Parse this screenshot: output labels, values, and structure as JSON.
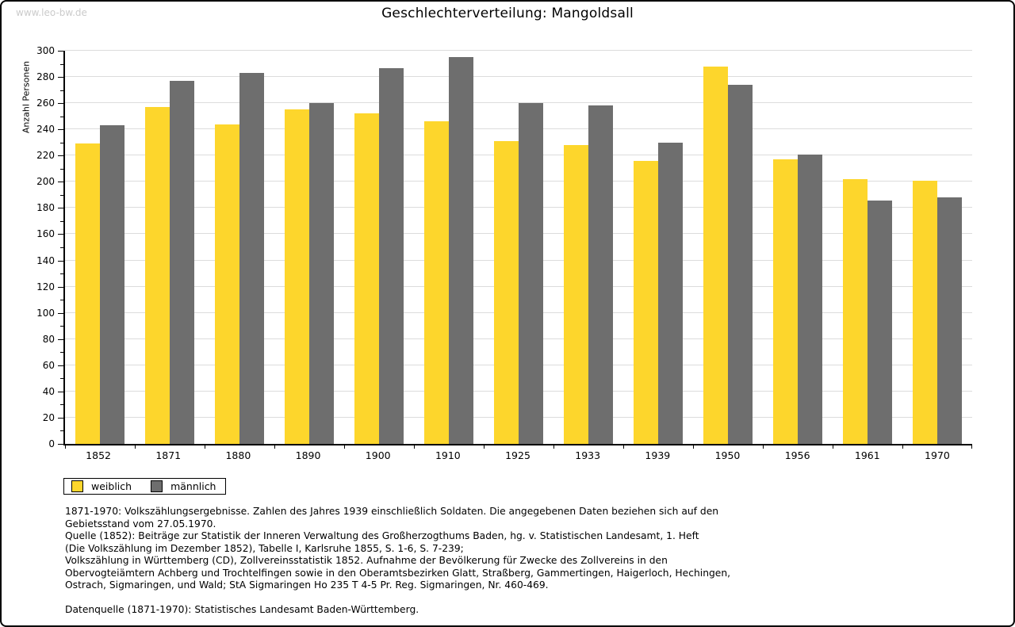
{
  "watermark": "www.leo-bw.de",
  "title": "Geschlechterverteilung: Mangoldsall",
  "chart_data": {
    "type": "bar",
    "title": "Geschlechterverteilung: Mangoldsall",
    "xlabel": "",
    "ylabel": "Anzahl Personen",
    "ylim": [
      0,
      300
    ],
    "ytick_step": 20,
    "yminor_step": 10,
    "grid": true,
    "legend_position": "bottom-left",
    "categories": [
      "1852",
      "1871",
      "1880",
      "1890",
      "1900",
      "1910",
      "1925",
      "1933",
      "1939",
      "1950",
      "1956",
      "1961",
      "1970"
    ],
    "series": [
      {
        "name": "weiblich",
        "color": "#fdd62c",
        "values": [
          229,
          257,
          244,
          255,
          252,
          246,
          231,
          228,
          216,
          288,
          217,
          202,
          201
        ]
      },
      {
        "name": "männlich",
        "color": "#6e6e6e",
        "values": [
          243,
          277,
          283,
          260,
          287,
          295,
          260,
          258,
          230,
          274,
          221,
          186,
          188
        ]
      }
    ]
  },
  "legend": {
    "items": [
      {
        "label": "weiblich",
        "color": "#fdd62c"
      },
      {
        "label": "männlich",
        "color": "#6e6e6e"
      }
    ]
  },
  "footnotes": {
    "lines": [
      "1871-1970: Volkszählungsergebnisse. Zahlen des Jahres 1939 einschließlich Soldaten. Die angegebenen Daten beziehen sich auf den",
      "Gebietsstand vom 27.05.1970.",
      "Quelle (1852): Beiträge zur Statistik der Inneren Verwaltung des Großherzogthums Baden, hg. v. Statistischen Landesamt, 1. Heft",
      "(Die Volkszählung im Dezember 1852), Tabelle I, Karlsruhe 1855, S. 1-6, S. 7-239;",
      "Volkszählung in Württemberg (CD), Zollvereinsstatistik 1852. Aufnahme der Bevölkerung für Zwecke des Zollvereins in den",
      "Obervogteiämtern Achberg und Trochtelfingen sowie in den Oberamtsbezirken Glatt, Straßberg, Gammertingen, Haigerloch, Hechingen,",
      "Ostrach, Sigmaringen, und Wald; StA Sigmaringen Ho 235 T 4-5 Pr. Reg. Sigmaringen, Nr. 460-469.",
      "",
      "Datenquelle (1871-1970): Statistisches Landesamt Baden-Württemberg."
    ]
  },
  "colors": {
    "female_bar": "#fdd62c",
    "male_bar": "#6e6e6e",
    "gridline": "#dcdcdc",
    "axis": "#000000",
    "watermark": "#cbcbcb",
    "frame_border": "#000000",
    "background": "#ffffff"
  }
}
